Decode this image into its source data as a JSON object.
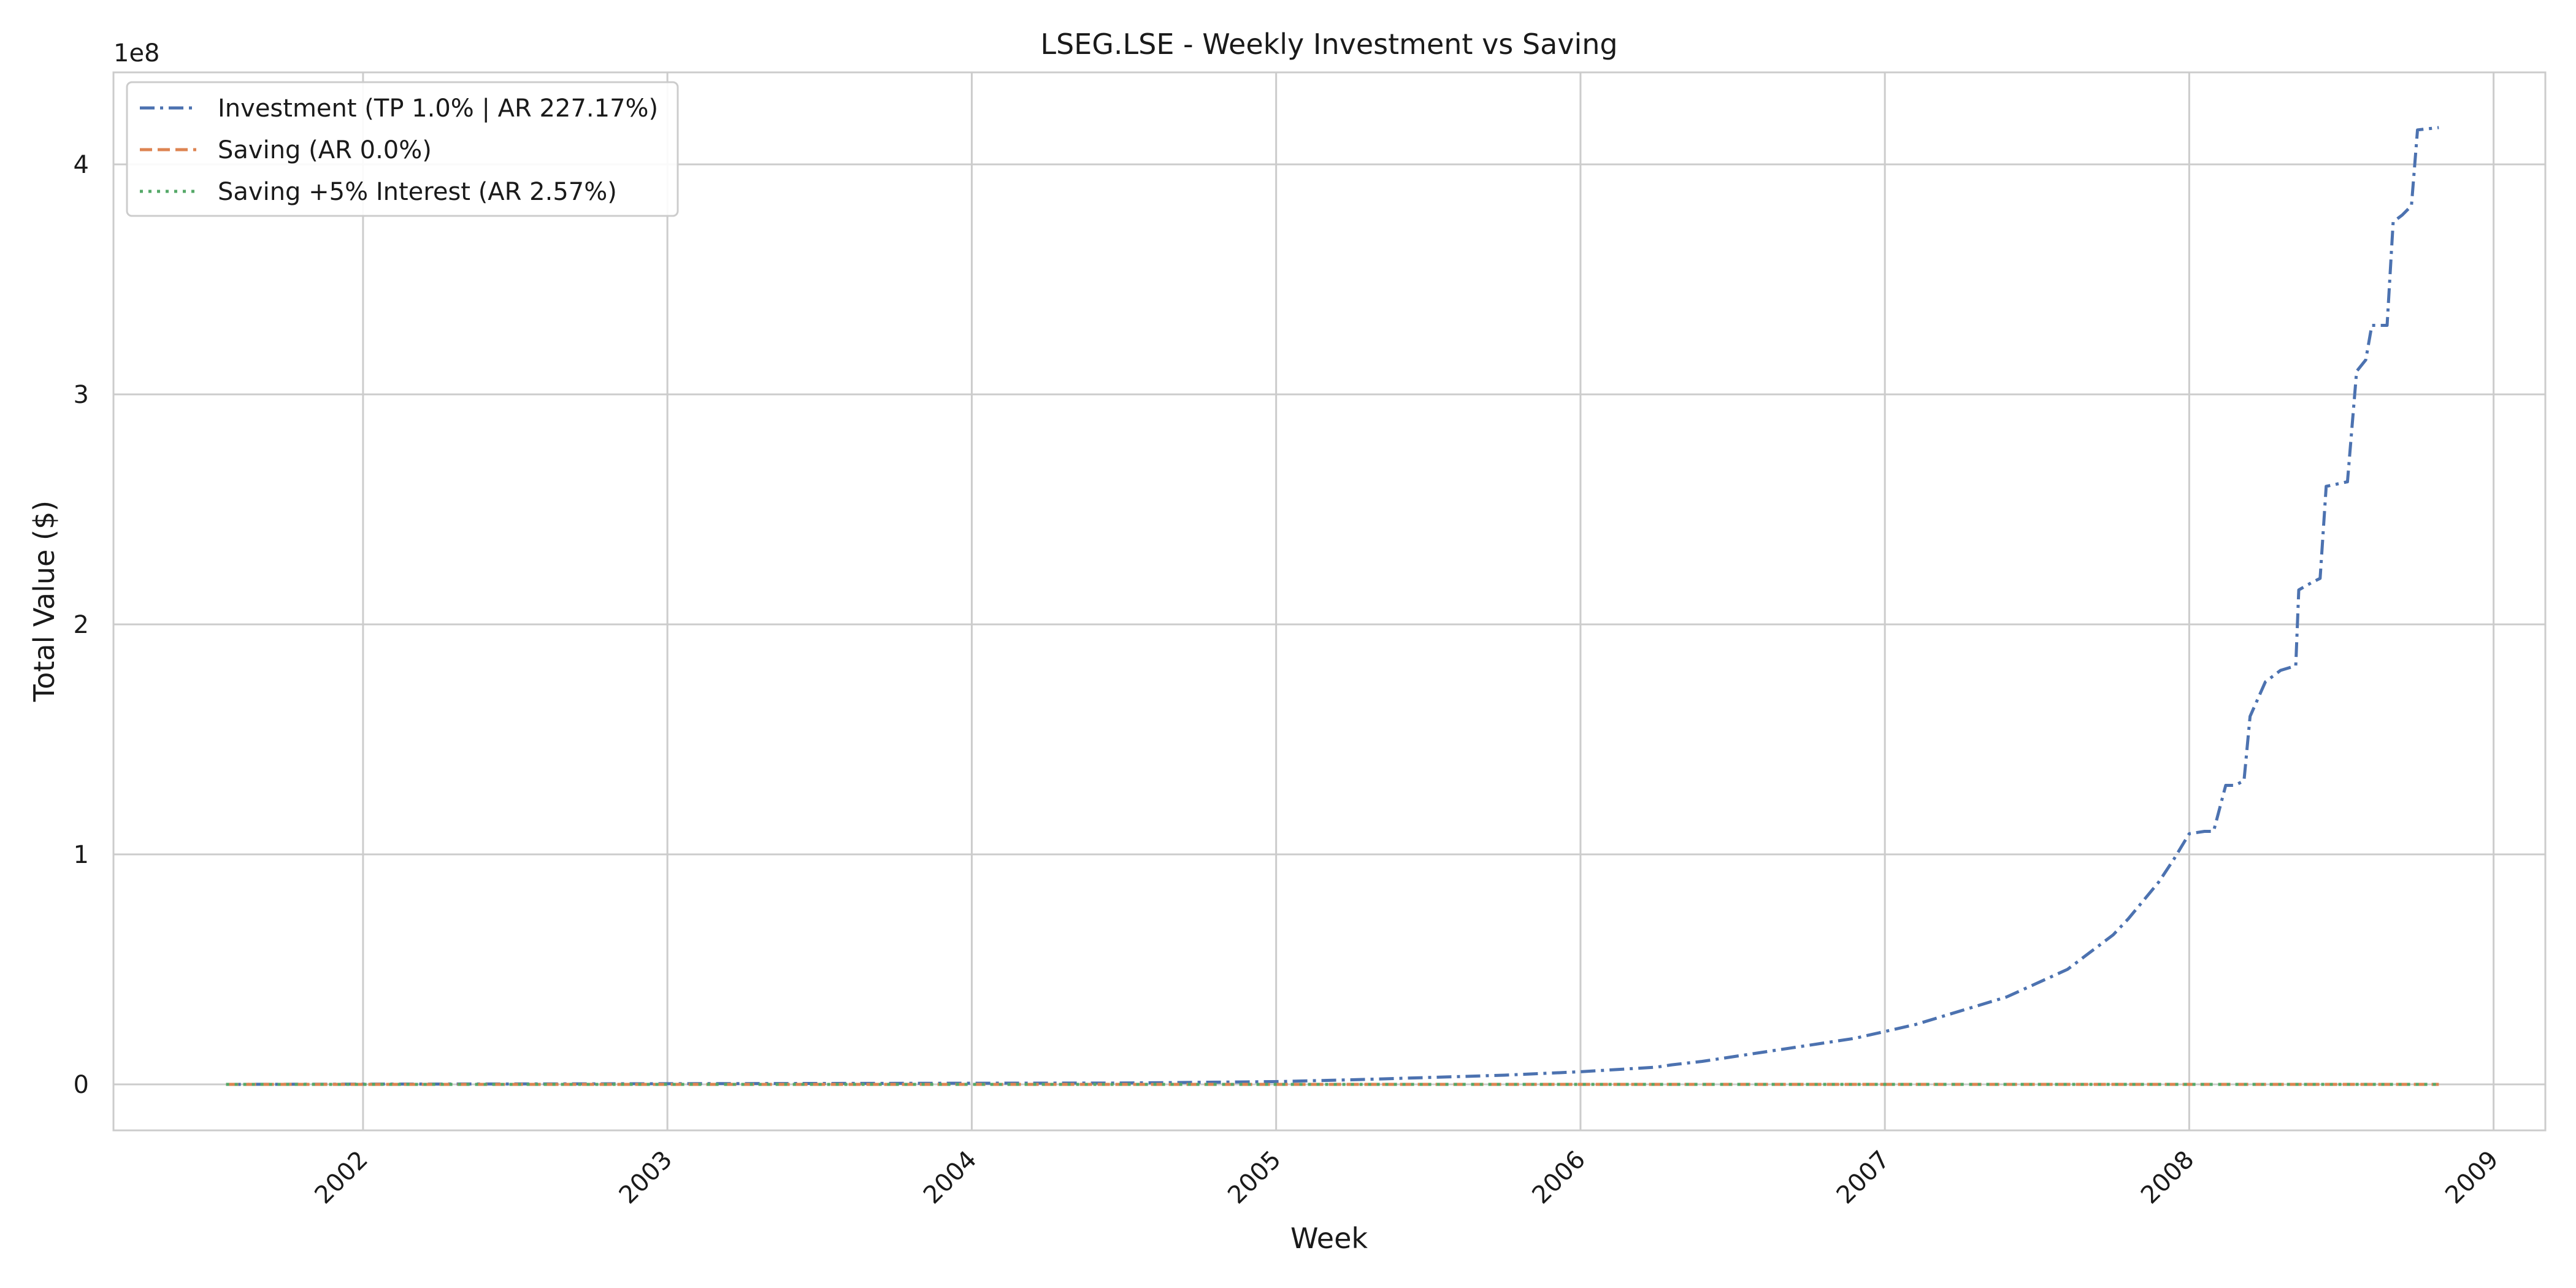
{
  "chart_data": {
    "type": "line",
    "title": "LSEG.LSE - Weekly Investment vs Saving",
    "xlabel": "Week",
    "ylabel": "Total Value ($)",
    "y_offset_text": "1e8",
    "y_scale_multiplier": 100000000,
    "xlim": [
      2001.18,
      2009.17
    ],
    "ylim": [
      -0.2,
      4.4
    ],
    "x_ticks": [
      2002,
      2003,
      2004,
      2005,
      2006,
      2007,
      2008,
      2009
    ],
    "x_tick_labels": [
      "2002",
      "2003",
      "2004",
      "2005",
      "2006",
      "2007",
      "2008",
      "2009"
    ],
    "y_ticks": [
      0,
      1,
      2,
      3,
      4
    ],
    "y_tick_labels": [
      "0",
      "1",
      "2",
      "3",
      "4"
    ],
    "grid": true,
    "legend_position": "top-left",
    "series": [
      {
        "name": "Investment (TP 1.0% | AR 227.17%)",
        "color": "#4c72b0",
        "linestyle": "dashdot",
        "x": [
          2001.55,
          2002.0,
          2002.5,
          2003.0,
          2003.5,
          2004.0,
          2004.5,
          2005.0,
          2005.25,
          2005.5,
          2005.75,
          2006.0,
          2006.25,
          2006.3,
          2006.4,
          2006.5,
          2006.6,
          2006.7,
          2006.8,
          2006.9,
          2007.0,
          2007.1,
          2007.2,
          2007.3,
          2007.4,
          2007.5,
          2007.6,
          2007.65,
          2007.7,
          2007.75,
          2007.8,
          2007.85,
          2007.9,
          2007.95,
          2008.0,
          2008.05,
          2008.08,
          2008.12,
          2008.15,
          2008.18,
          2008.2,
          2008.25,
          2008.3,
          2008.35,
          2008.36,
          2008.4,
          2008.43,
          2008.45,
          2008.52,
          2008.55,
          2008.58,
          2008.6,
          2008.65,
          2008.67,
          2008.7,
          2008.73,
          2008.75,
          2008.82
        ],
        "y": [
          0.0,
          0.001,
          0.002,
          0.003,
          0.004,
          0.005,
          0.006,
          0.012,
          0.02,
          0.03,
          0.04,
          0.055,
          0.075,
          0.085,
          0.1,
          0.12,
          0.14,
          0.16,
          0.18,
          0.2,
          0.23,
          0.26,
          0.3,
          0.34,
          0.38,
          0.44,
          0.5,
          0.55,
          0.6,
          0.65,
          0.72,
          0.8,
          0.88,
          0.98,
          1.09,
          1.1,
          1.1,
          1.3,
          1.3,
          1.32,
          1.6,
          1.75,
          1.8,
          1.82,
          2.15,
          2.18,
          2.2,
          2.6,
          2.62,
          3.1,
          3.15,
          3.3,
          3.3,
          3.75,
          3.78,
          3.82,
          4.15,
          4.16
        ]
      },
      {
        "name": "Saving (AR 0.0%)",
        "color": "#dd8452",
        "linestyle": "dashed",
        "x": [
          2001.55,
          2008.82
        ],
        "y": [
          0.0,
          0.0
        ]
      },
      {
        "name": "Saving +5% Interest (AR 2.57%)",
        "color": "#55a868",
        "linestyle": "dotted",
        "x": [
          2001.55,
          2008.82
        ],
        "y": [
          0.0,
          0.0
        ]
      }
    ]
  }
}
